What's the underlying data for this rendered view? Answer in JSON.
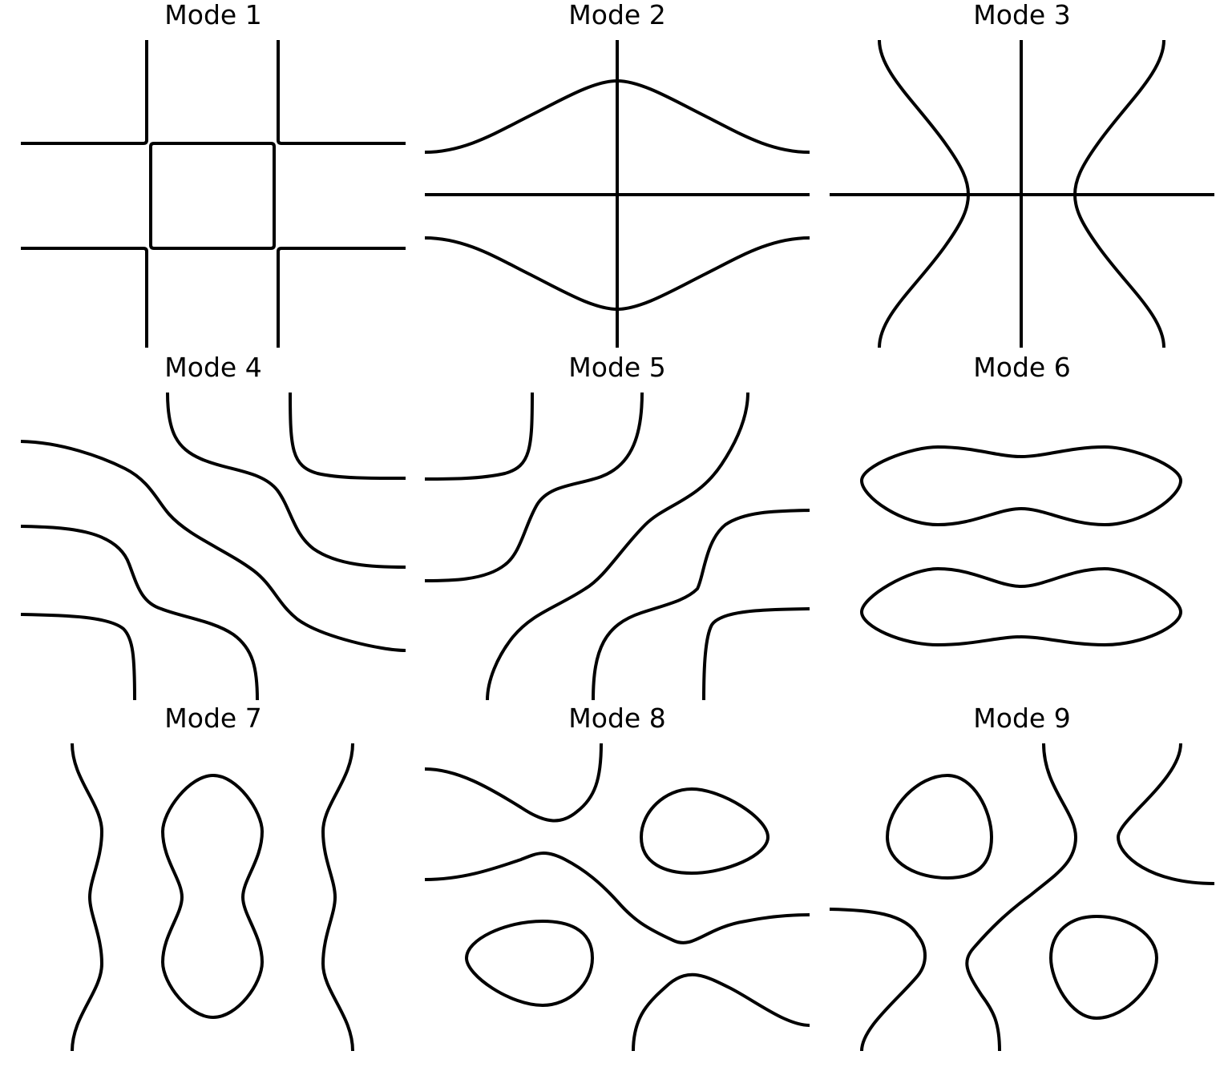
{
  "panels": [
    {
      "title": "Mode 1"
    },
    {
      "title": "Mode 2"
    },
    {
      "title": "Mode 3"
    },
    {
      "title": "Mode 4"
    },
    {
      "title": "Mode 5"
    },
    {
      "title": "Mode 6"
    },
    {
      "title": "Mode 7"
    },
    {
      "title": "Mode 8"
    },
    {
      "title": "Mode 9"
    }
  ],
  "line_color": "#000000",
  "background_color": "#ffffff"
}
